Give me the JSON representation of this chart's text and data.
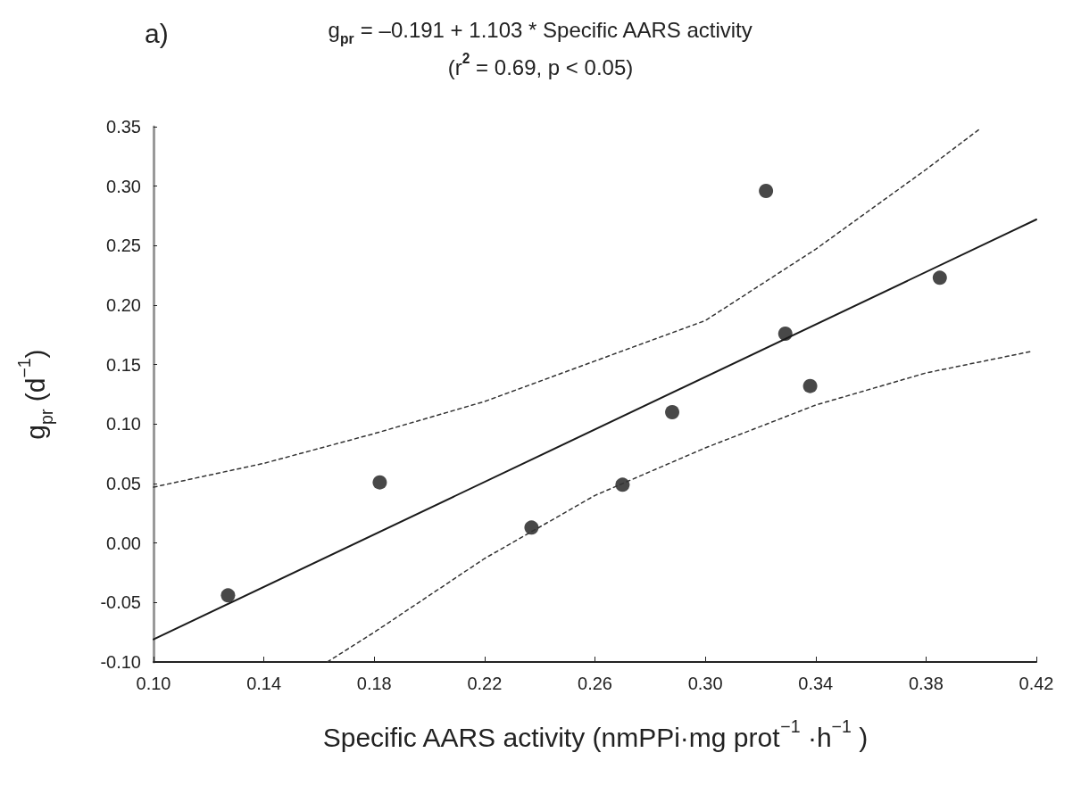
{
  "chart_data": {
    "type": "scatter",
    "title": "g$_{pr}$ = –0.191 + 1.103 * Specific AARS activity",
    "subtitle": "(r$^{2}$ = 0.69, p < 0.05)",
    "annotations": [
      "a)"
    ],
    "xlabel": "Specific AARS activity (nmPPi·mg prot$^{−1}$ ·h$^{−1}$ )",
    "ylabel": "g$_{pr}$ (d$^{−1}$)",
    "xlim": [
      0.1,
      0.42
    ],
    "xticks": [
      {
        "value": 0.1,
        "label": "0.10"
      },
      {
        "value": 0.14,
        "label": "0.14"
      },
      {
        "value": 0.18,
        "label": "0.18"
      },
      {
        "value": 0.22,
        "label": "0.22"
      },
      {
        "value": 0.26,
        "label": "0.26"
      },
      {
        "value": 0.3,
        "label": "0.30"
      },
      {
        "value": 0.34,
        "label": "0.34"
      },
      {
        "value": 0.38,
        "label": "0.38"
      },
      {
        "value": 0.42,
        "label": "0.42"
      }
    ],
    "ylim": [
      -0.1,
      0.35
    ],
    "yticks": [
      {
        "value": -0.1,
        "label": "-0.10"
      },
      {
        "value": -0.05,
        "label": "-0.05"
      },
      {
        "value": 0,
        "label": "0.00"
      },
      {
        "value": 0.05,
        "label": "0.05"
      },
      {
        "value": 0.1,
        "label": "0.10"
      },
      {
        "value": 0.15,
        "label": "0.15"
      },
      {
        "value": 0.2,
        "label": "0.20"
      },
      {
        "value": 0.25,
        "label": "0.25"
      },
      {
        "value": 0.3,
        "label": "0.30"
      },
      {
        "value": 0.35,
        "label": "0.35"
      }
    ],
    "grid": false,
    "series": [
      {
        "type": "scatter",
        "color": "#1a1a1a",
        "marker": "circle",
        "x": [
          0.127,
          0.182,
          0.237,
          0.27,
          0.288,
          0.322,
          0.329,
          0.338,
          0.385
        ],
        "values": [
          -0.044,
          0.051,
          0.013,
          0.049,
          0.11,
          0.296,
          0.176,
          0.132,
          0.223
        ]
      },
      {
        "type": "line",
        "color": "#1a1a1a",
        "marker": "none",
        "line_style": "solid",
        "x": [
          0.1,
          0.42
        ],
        "values": [
          -0.081,
          0.272
        ]
      },
      {
        "type": "line",
        "color": "#333333",
        "marker": "none",
        "line_style": "dashed",
        "x": [
          0.1,
          0.14,
          0.18,
          0.22,
          0.26,
          0.3,
          0.34,
          0.38,
          0.4
        ],
        "values": [
          0.047,
          0.067,
          0.092,
          0.119,
          0.153,
          0.187,
          0.247,
          0.314,
          0.349
        ]
      },
      {
        "type": "line",
        "color": "#333333",
        "marker": "none",
        "line_style": "dashed",
        "x": [
          0.163,
          0.18,
          0.22,
          0.26,
          0.3,
          0.34,
          0.38,
          0.418
        ],
        "values": [
          -0.1,
          -0.075,
          -0.013,
          0.04,
          0.08,
          0.116,
          0.143,
          0.161
        ]
      }
    ]
  }
}
